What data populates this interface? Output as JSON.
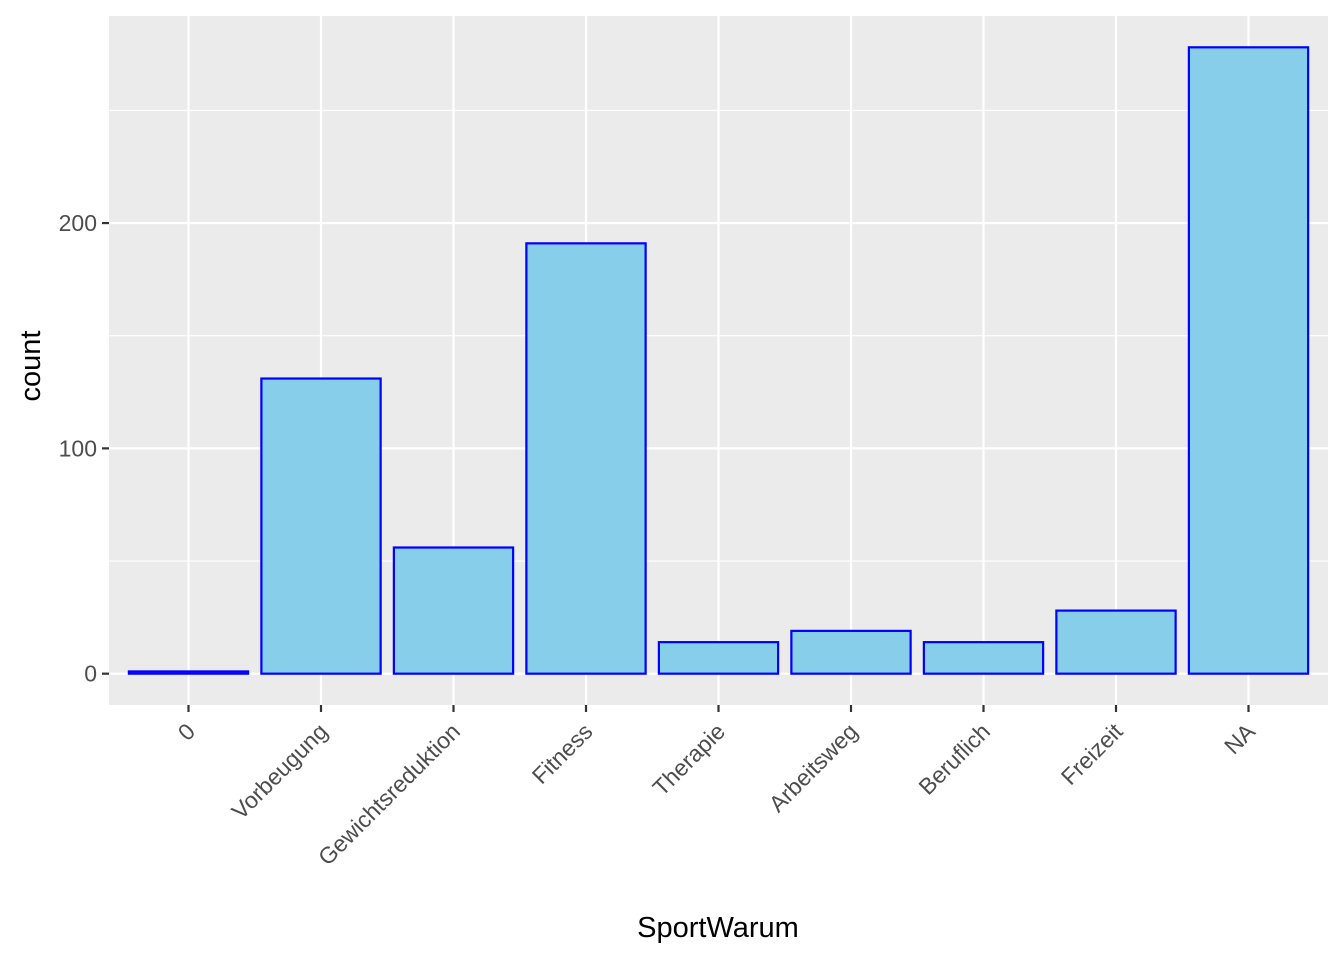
{
  "chart_data": {
    "type": "bar",
    "categories": [
      "0",
      "Vorbeugung",
      "Gewichtsreduktion",
      "Fitness",
      "Therapie",
      "Arbeitsweg",
      "Beruflich",
      "Freizeit",
      "NA"
    ],
    "values": [
      1,
      131,
      56,
      191,
      14,
      19,
      14,
      28,
      278
    ],
    "xlabel": "SportWarum",
    "ylabel": "count",
    "ylim": [
      -13.9,
      291.9
    ],
    "yticks": [
      0,
      100,
      200
    ],
    "ytick_labels": [
      "0",
      "100",
      "200"
    ],
    "grid": true,
    "colors": {
      "bar_fill": "#87CEEB",
      "bar_stroke": "#0000FF",
      "panel_background": "#EBEBEB",
      "grid_line": "#FFFFFF"
    }
  }
}
